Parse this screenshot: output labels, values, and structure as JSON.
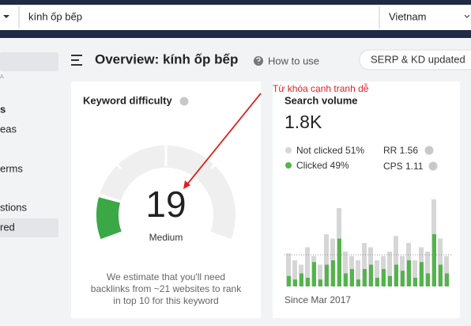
{
  "search_bar": {
    "query": "kính ốp bếp",
    "country": "Vietnam"
  },
  "sidebar": {
    "items": [
      "A",
      "s",
      "eas",
      "erms",
      "stions",
      "red"
    ]
  },
  "header": {
    "title": "Overview: kính ốp bếp",
    "help": "How to use",
    "badge": "SERP & KD updated"
  },
  "annotation": "Từ khóa cạnh tranh dễ",
  "keyword_difficulty": {
    "title": "Keyword difficulty",
    "score": 19,
    "level": "Medium",
    "description": [
      "We estimate that you'll need",
      "backlinks from ~21 websites to rank",
      "in top 10 for this keyword"
    ]
  },
  "search_volume": {
    "title": "Search volume",
    "value": "1.8K",
    "legend": [
      {
        "label": "Not clicked 51%",
        "color": "#d6d6d6"
      },
      {
        "label": "Clicked 49%",
        "color": "#52b54b"
      }
    ],
    "metrics": [
      "RR 1.56",
      "CPS 1.11"
    ],
    "since": "Since Mar 2017",
    "history": {
      "not_clicked": [
        38,
        30,
        25,
        45,
        35,
        25,
        60,
        55,
        90,
        40,
        35,
        30,
        50,
        45,
        30,
        35,
        40,
        58,
        35,
        50,
        30,
        45,
        40,
        100,
        55,
        35
      ],
      "clicked": [
        12,
        8,
        15,
        10,
        28,
        8,
        25,
        30,
        55,
        15,
        20,
        8,
        20,
        25,
        10,
        20,
        12,
        25,
        18,
        30,
        10,
        28,
        15,
        60,
        25,
        15
      ]
    }
  }
}
